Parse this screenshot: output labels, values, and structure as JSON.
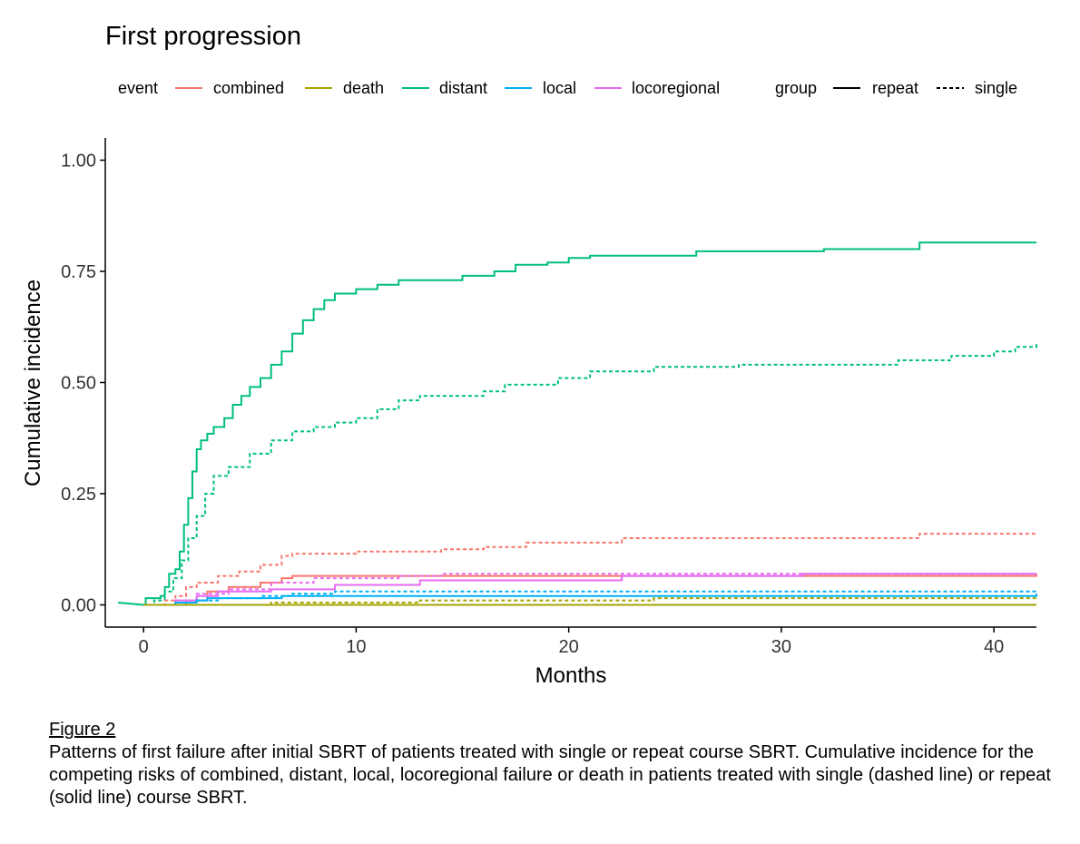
{
  "figure": {
    "caption_label": "Figure 2",
    "caption_text": "Patterns of first failure after initial SBRT of patients treated with single or repeat course SBRT.  Cumulative incidence for the competing risks of combined, distant, local, locoregional failure or death in patients treated with single (dashed line) or repeat (solid line) course SBRT."
  },
  "chart_data": {
    "type": "line",
    "step": true,
    "title": "First progression",
    "xlabel": "Months",
    "ylabel": "Cumulative incidence",
    "xlim": [
      -1.8,
      42
    ],
    "ylim": [
      -0.05,
      1.05
    ],
    "x_ticks": [
      0,
      10,
      20,
      30,
      40
    ],
    "x_tick_labels": [
      "0",
      "10",
      "20",
      "30",
      "40"
    ],
    "y_ticks": [
      0,
      0.25,
      0.5,
      0.75,
      1.0
    ],
    "y_tick_labels": [
      "0.00",
      "0.25",
      "0.50",
      "0.75",
      "1.00"
    ],
    "grid": false,
    "legend_position": "top",
    "legend": {
      "event_title": "event",
      "events": [
        {
          "name": "combined",
          "color": "#F8766D"
        },
        {
          "name": "death",
          "color": "#A3A500"
        },
        {
          "name": "distant",
          "color": "#00BF7D"
        },
        {
          "name": "local",
          "color": "#00B0F6"
        },
        {
          "name": "locoregional",
          "color": "#E76BF3"
        }
      ],
      "group_title": "group",
      "groups": [
        {
          "name": "repeat",
          "linetype": "solid"
        },
        {
          "name": "single",
          "linetype": "dashed"
        }
      ]
    },
    "series": [
      {
        "name": "distant",
        "group": "repeat",
        "color": "#00BF7D",
        "dashed": false,
        "points": [
          [
            -1.2,
            0.005
          ],
          [
            0,
            0
          ],
          [
            0.1,
            0.015
          ],
          [
            0.8,
            0.02
          ],
          [
            1.0,
            0.04
          ],
          [
            1.2,
            0.07
          ],
          [
            1.5,
            0.08
          ],
          [
            1.7,
            0.12
          ],
          [
            1.9,
            0.18
          ],
          [
            2.1,
            0.24
          ],
          [
            2.3,
            0.3
          ],
          [
            2.5,
            0.35
          ],
          [
            2.7,
            0.37
          ],
          [
            3.0,
            0.385
          ],
          [
            3.3,
            0.4
          ],
          [
            3.8,
            0.42
          ],
          [
            4.2,
            0.45
          ],
          [
            4.6,
            0.47
          ],
          [
            5.0,
            0.49
          ],
          [
            5.5,
            0.51
          ],
          [
            6.0,
            0.54
          ],
          [
            6.5,
            0.57
          ],
          [
            7.0,
            0.61
          ],
          [
            7.5,
            0.64
          ],
          [
            8.0,
            0.665
          ],
          [
            8.5,
            0.685
          ],
          [
            9.0,
            0.7
          ],
          [
            10.0,
            0.71
          ],
          [
            11.0,
            0.72
          ],
          [
            12.0,
            0.73
          ],
          [
            15.0,
            0.74
          ],
          [
            16.5,
            0.75
          ],
          [
            17.5,
            0.765
          ],
          [
            19.0,
            0.77
          ],
          [
            20.0,
            0.78
          ],
          [
            21.0,
            0.785
          ],
          [
            26.0,
            0.795
          ],
          [
            32.0,
            0.8
          ],
          [
            36.5,
            0.815
          ],
          [
            42.0,
            0.815
          ]
        ]
      },
      {
        "name": "distant",
        "group": "single",
        "color": "#00BF7D",
        "dashed": true,
        "points": [
          [
            0,
            0
          ],
          [
            0.5,
            0.01
          ],
          [
            1.0,
            0.03
          ],
          [
            1.4,
            0.06
          ],
          [
            1.8,
            0.1
          ],
          [
            2.1,
            0.15
          ],
          [
            2.5,
            0.2
          ],
          [
            2.9,
            0.25
          ],
          [
            3.3,
            0.29
          ],
          [
            4.0,
            0.31
          ],
          [
            5.0,
            0.34
          ],
          [
            6.0,
            0.37
          ],
          [
            7.0,
            0.39
          ],
          [
            8.0,
            0.4
          ],
          [
            9.0,
            0.41
          ],
          [
            10.0,
            0.42
          ],
          [
            11.0,
            0.44
          ],
          [
            12.0,
            0.46
          ],
          [
            13.0,
            0.47
          ],
          [
            16.0,
            0.48
          ],
          [
            17.0,
            0.495
          ],
          [
            19.5,
            0.51
          ],
          [
            21.0,
            0.525
          ],
          [
            24.0,
            0.535
          ],
          [
            28.0,
            0.54
          ],
          [
            35.5,
            0.55
          ],
          [
            38.0,
            0.56
          ],
          [
            40.0,
            0.57
          ],
          [
            41.0,
            0.58
          ],
          [
            42.0,
            0.59
          ]
        ]
      },
      {
        "name": "combined",
        "group": "single",
        "color": "#F8766D",
        "dashed": true,
        "points": [
          [
            0,
            0
          ],
          [
            1.0,
            0.01
          ],
          [
            1.5,
            0.02
          ],
          [
            2.0,
            0.04
          ],
          [
            2.5,
            0.05
          ],
          [
            3.5,
            0.065
          ],
          [
            4.5,
            0.075
          ],
          [
            5.5,
            0.09
          ],
          [
            6.5,
            0.11
          ],
          [
            7.0,
            0.115
          ],
          [
            10.0,
            0.12
          ],
          [
            14.0,
            0.125
          ],
          [
            16.0,
            0.13
          ],
          [
            18.0,
            0.14
          ],
          [
            22.5,
            0.15
          ],
          [
            36.5,
            0.16
          ],
          [
            42.0,
            0.16
          ]
        ]
      },
      {
        "name": "combined",
        "group": "repeat",
        "color": "#F8766D",
        "dashed": false,
        "points": [
          [
            0,
            0
          ],
          [
            2.0,
            0.01
          ],
          [
            3.0,
            0.03
          ],
          [
            4.0,
            0.04
          ],
          [
            5.5,
            0.05
          ],
          [
            6.5,
            0.06
          ],
          [
            7.0,
            0.065
          ],
          [
            42.0,
            0.07
          ]
        ]
      },
      {
        "name": "locoregional",
        "group": "repeat",
        "color": "#E76BF3",
        "dashed": false,
        "points": [
          [
            0,
            0
          ],
          [
            1.5,
            0.01
          ],
          [
            2.5,
            0.02
          ],
          [
            3.5,
            0.03
          ],
          [
            6.0,
            0.035
          ],
          [
            9.0,
            0.045
          ],
          [
            13.0,
            0.055
          ],
          [
            22.5,
            0.065
          ],
          [
            31.0,
            0.07
          ],
          [
            42.0,
            0.07
          ]
        ]
      },
      {
        "name": "locoregional",
        "group": "single",
        "color": "#E76BF3",
        "dashed": true,
        "points": [
          [
            0,
            0
          ],
          [
            1.5,
            0.01
          ],
          [
            2.5,
            0.025
          ],
          [
            4.0,
            0.035
          ],
          [
            6.0,
            0.05
          ],
          [
            8.0,
            0.06
          ],
          [
            12.0,
            0.065
          ],
          [
            14.0,
            0.07
          ],
          [
            42.0,
            0.07
          ]
        ]
      },
      {
        "name": "local",
        "group": "single",
        "color": "#00B0F6",
        "dashed": true,
        "points": [
          [
            0,
            0
          ],
          [
            1.5,
            0.005
          ],
          [
            2.5,
            0.01
          ],
          [
            3.5,
            0.015
          ],
          [
            5.5,
            0.02
          ],
          [
            7.0,
            0.025
          ],
          [
            9.0,
            0.03
          ],
          [
            42.0,
            0.03
          ]
        ]
      },
      {
        "name": "local",
        "group": "repeat",
        "color": "#00B0F6",
        "dashed": false,
        "points": [
          [
            0,
            0
          ],
          [
            1.5,
            0.005
          ],
          [
            2.5,
            0.01
          ],
          [
            3.0,
            0.015
          ],
          [
            6.5,
            0.02
          ],
          [
            42.0,
            0.025
          ]
        ]
      },
      {
        "name": "death",
        "group": "single",
        "color": "#A3A500",
        "dashed": true,
        "points": [
          [
            0,
            0
          ],
          [
            6.0,
            0.005
          ],
          [
            13.0,
            0.01
          ],
          [
            24.0,
            0.015
          ],
          [
            42.0,
            0.015
          ]
        ]
      },
      {
        "name": "death",
        "group": "repeat",
        "color": "#A3A500",
        "dashed": false,
        "points": [
          [
            0,
            0
          ],
          [
            42.0,
            0
          ]
        ]
      }
    ]
  }
}
